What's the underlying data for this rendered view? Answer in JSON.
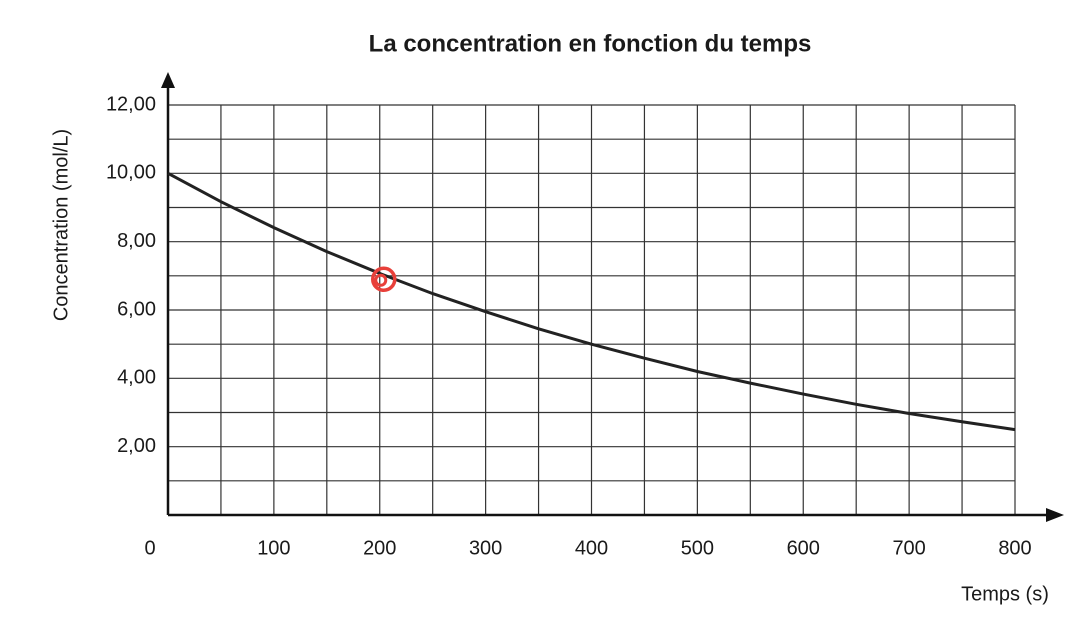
{
  "chart_data": {
    "type": "line",
    "title": "La concentration en fonction du temps",
    "x_label": "Temps (s)",
    "y_label": "Concentration (mol/L)",
    "x": [
      0,
      50,
      100,
      150,
      200,
      250,
      300,
      350,
      400,
      450,
      500,
      550,
      600,
      650,
      700,
      750,
      800
    ],
    "series": [
      {
        "color": "#222222",
        "values": [
          10,
          9.17,
          8.41,
          7.71,
          7.07,
          6.48,
          5.95,
          5.45,
          5.0,
          4.59,
          4.2,
          3.86,
          3.54,
          3.24,
          2.97,
          2.73,
          2.5
        ]
      }
    ],
    "xlim": [
      0,
      800
    ],
    "ylim": [
      0,
      12
    ],
    "xticks": [
      0,
      100,
      200,
      300,
      400,
      500,
      600,
      700,
      800
    ],
    "x_minor_ticks": [
      50,
      150,
      250,
      350,
      450,
      550,
      650,
      750
    ],
    "yticks": [
      {
        "value": 2,
        "label": "2,00"
      },
      {
        "value": 4,
        "label": "4,00"
      },
      {
        "value": 6,
        "label": "6,00"
      },
      {
        "value": 8,
        "label": "8,00"
      },
      {
        "value": 10,
        "label": "10,00"
      },
      {
        "value": 12,
        "label": "12,00"
      }
    ],
    "y_minor_ticks": [
      1,
      3,
      5,
      7,
      9,
      11
    ],
    "grid": true,
    "marker": {
      "x": 200,
      "y": 6.9,
      "color": "#e8403a"
    }
  }
}
